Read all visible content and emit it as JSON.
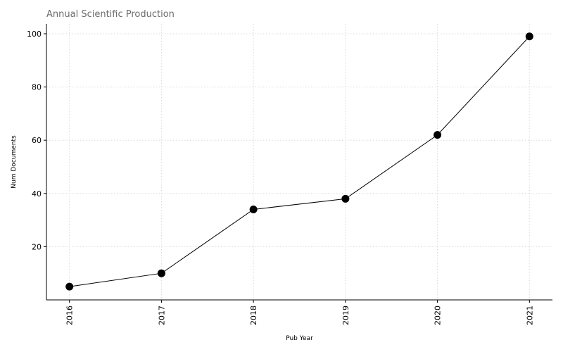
{
  "chart_data": {
    "type": "line",
    "title": "Annual Scientific Production",
    "xlabel": "Pub Year",
    "ylabel": "Num Documents",
    "x": [
      2016,
      2017,
      2018,
      2019,
      2020,
      2021
    ],
    "values": [
      5,
      10,
      34,
      38,
      62,
      99
    ],
    "x_tick_labels": [
      "2016",
      "2017",
      "2018",
      "2019",
      "2020",
      "2021"
    ],
    "y_ticks": [
      20,
      40,
      60,
      80,
      100
    ],
    "y_tick_labels": [
      "20",
      "40",
      "60",
      "80",
      "100"
    ],
    "xlim": [
      2015.75,
      2021.25
    ],
    "ylim": [
      0,
      103.7
    ],
    "grid": true,
    "line_color": "#000000",
    "marker_color": "#000000",
    "grid_color": "#d9d9d9"
  }
}
